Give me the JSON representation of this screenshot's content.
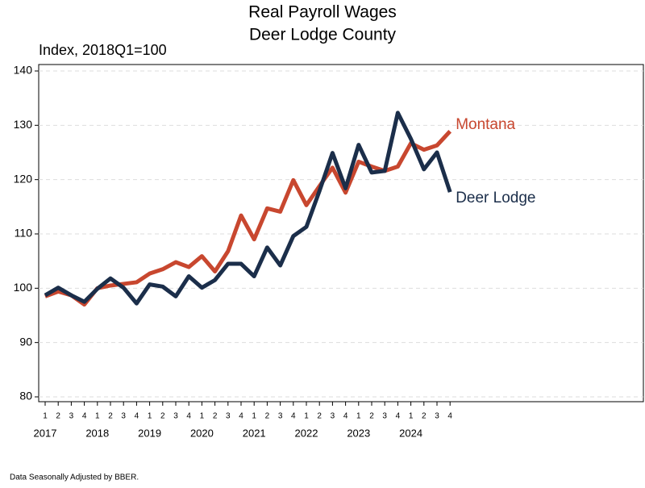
{
  "chart_data": {
    "type": "line",
    "title": "Real Payroll Wages",
    "subtitle": "Deer Lodge County",
    "y_label": "Index, 2018Q1=100",
    "footnote": "Data Seasonally Adjusted by BBER.",
    "categories": [
      "1",
      "2",
      "3",
      "4",
      "1",
      "2",
      "3",
      "4",
      "1",
      "2",
      "3",
      "4",
      "1",
      "2",
      "3",
      "4",
      "1",
      "2",
      "3",
      "4",
      "1",
      "2",
      "3",
      "4",
      "1",
      "2",
      "3",
      "4",
      "1",
      "2",
      "3",
      "4"
    ],
    "years": [
      "2017",
      "2018",
      "2019",
      "2020",
      "2021",
      "2022",
      "2023",
      "2024"
    ],
    "ylim": [
      80,
      140
    ],
    "yticks": [
      80,
      90,
      100,
      110,
      120,
      130,
      140
    ],
    "grid": true,
    "series": [
      {
        "name": "Montana",
        "color": "#c8472f",
        "values": [
          98.5,
          99.4,
          98.7,
          97.0,
          100.0,
          100.5,
          100.8,
          101.1,
          102.7,
          103.5,
          104.8,
          103.9,
          105.9,
          103.1,
          106.8,
          113.4,
          109.0,
          114.7,
          114.1,
          119.9,
          115.3,
          118.8,
          122.2,
          117.6,
          123.3,
          122.4,
          121.6,
          122.4,
          126.7,
          125.5,
          126.3,
          128.9
        ]
      },
      {
        "name": "Deer Lodge",
        "color": "#1b2e4a",
        "values": [
          98.7,
          100.1,
          98.7,
          97.5,
          99.9,
          101.8,
          100.1,
          97.2,
          100.7,
          100.3,
          98.5,
          102.2,
          100.1,
          101.5,
          104.5,
          104.5,
          102.2,
          107.5,
          104.2,
          109.6,
          111.3,
          117.9,
          124.9,
          118.4,
          126.4,
          121.3,
          121.6,
          132.3,
          127.5,
          121.9,
          125.0,
          117.7
        ]
      }
    ]
  }
}
